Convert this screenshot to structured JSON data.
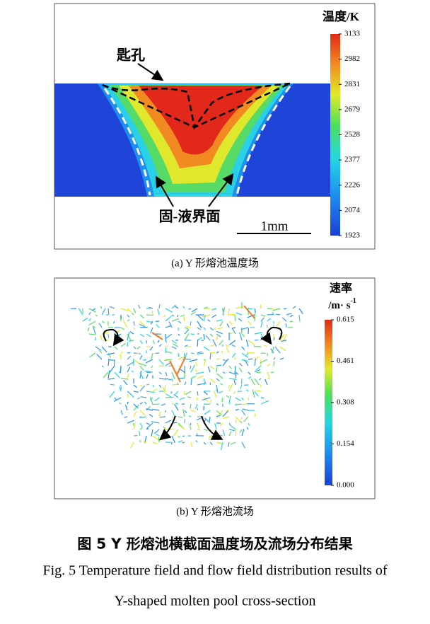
{
  "panel_a": {
    "keyhole_label": "匙孔",
    "interface_label": "固-液界面",
    "scale_label": "1mm",
    "colorbar_title": "温度/K",
    "colorbar_ticks": [
      "3133",
      "2982",
      "2831",
      "2679",
      "2528",
      "2377",
      "2226",
      "2074",
      "1923"
    ],
    "caption": "(a) Y 形熔池温度场"
  },
  "panel_b": {
    "colorbar_title": "速率",
    "colorbar_unit": "/m· s",
    "colorbar_unit_sup": "-1",
    "colorbar_ticks": [
      "0.615",
      "0.461",
      "0.308",
      "0.154",
      "0.000"
    ],
    "caption": "(b) Y 形熔池流场"
  },
  "figure_caption": {
    "chinese": "图 5 Y 形熔池横截面温度场及流场分布结果",
    "english_line1": "Fig. 5 Temperature field and flow field distribution results of",
    "english_line2": "Y-shaped molten pool cross-section"
  }
}
